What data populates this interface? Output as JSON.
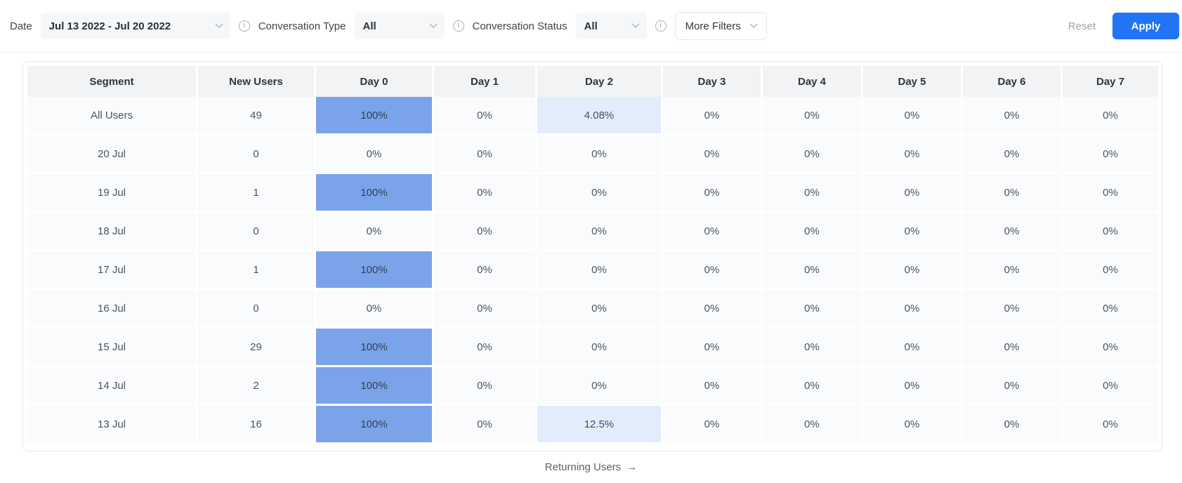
{
  "filter_bar": {
    "date_label": "Date",
    "date_value": "Jul 13 2022 - Jul 20 2022",
    "conversation_type_label": "Conversation Type",
    "conversation_type_value": "All",
    "conversation_status_label": "Conversation Status",
    "conversation_status_value": "All",
    "more_filters_label": "More Filters",
    "reset_label": "Reset",
    "apply_label": "Apply"
  },
  "colors": {
    "accent": "#2174f3",
    "retention_full": "#7aa3e9",
    "retention_partial": "#e3ecfa",
    "header_bg": "#f2f3f4",
    "cell_bg": "#fafbfc"
  },
  "table": {
    "columns": [
      "Segment",
      "New Users",
      "Day 0",
      "Day 1",
      "Day 2",
      "Day 3",
      "Day 4",
      "Day 5",
      "Day 6",
      "Day 7"
    ],
    "rows": [
      {
        "segment": "All Users",
        "new_users": "49",
        "days": [
          {
            "v": "100%",
            "hl": "strong"
          },
          {
            "v": "0%",
            "hl": "none"
          },
          {
            "v": "4.08%",
            "hl": "soft"
          },
          {
            "v": "0%",
            "hl": "none"
          },
          {
            "v": "0%",
            "hl": "none"
          },
          {
            "v": "0%",
            "hl": "none"
          },
          {
            "v": "0%",
            "hl": "none"
          },
          {
            "v": "0%",
            "hl": "none"
          }
        ]
      },
      {
        "segment": "20 Jul",
        "new_users": "0",
        "days": [
          {
            "v": "0%",
            "hl": "none"
          },
          {
            "v": "0%",
            "hl": "none"
          },
          {
            "v": "0%",
            "hl": "none"
          },
          {
            "v": "0%",
            "hl": "none"
          },
          {
            "v": "0%",
            "hl": "none"
          },
          {
            "v": "0%",
            "hl": "none"
          },
          {
            "v": "0%",
            "hl": "none"
          },
          {
            "v": "0%",
            "hl": "none"
          }
        ]
      },
      {
        "segment": "19 Jul",
        "new_users": "1",
        "days": [
          {
            "v": "100%",
            "hl": "strong"
          },
          {
            "v": "0%",
            "hl": "none"
          },
          {
            "v": "0%",
            "hl": "none"
          },
          {
            "v": "0%",
            "hl": "none"
          },
          {
            "v": "0%",
            "hl": "none"
          },
          {
            "v": "0%",
            "hl": "none"
          },
          {
            "v": "0%",
            "hl": "none"
          },
          {
            "v": "0%",
            "hl": "none"
          }
        ]
      },
      {
        "segment": "18 Jul",
        "new_users": "0",
        "days": [
          {
            "v": "0%",
            "hl": "none"
          },
          {
            "v": "0%",
            "hl": "none"
          },
          {
            "v": "0%",
            "hl": "none"
          },
          {
            "v": "0%",
            "hl": "none"
          },
          {
            "v": "0%",
            "hl": "none"
          },
          {
            "v": "0%",
            "hl": "none"
          },
          {
            "v": "0%",
            "hl": "none"
          },
          {
            "v": "0%",
            "hl": "none"
          }
        ]
      },
      {
        "segment": "17 Jul",
        "new_users": "1",
        "days": [
          {
            "v": "100%",
            "hl": "strong"
          },
          {
            "v": "0%",
            "hl": "none"
          },
          {
            "v": "0%",
            "hl": "none"
          },
          {
            "v": "0%",
            "hl": "none"
          },
          {
            "v": "0%",
            "hl": "none"
          },
          {
            "v": "0%",
            "hl": "none"
          },
          {
            "v": "0%",
            "hl": "none"
          },
          {
            "v": "0%",
            "hl": "none"
          }
        ]
      },
      {
        "segment": "16 Jul",
        "new_users": "0",
        "days": [
          {
            "v": "0%",
            "hl": "none"
          },
          {
            "v": "0%",
            "hl": "none"
          },
          {
            "v": "0%",
            "hl": "none"
          },
          {
            "v": "0%",
            "hl": "none"
          },
          {
            "v": "0%",
            "hl": "none"
          },
          {
            "v": "0%",
            "hl": "none"
          },
          {
            "v": "0%",
            "hl": "none"
          },
          {
            "v": "0%",
            "hl": "none"
          }
        ]
      },
      {
        "segment": "15 Jul",
        "new_users": "29",
        "days": [
          {
            "v": "100%",
            "hl": "strong"
          },
          {
            "v": "0%",
            "hl": "none"
          },
          {
            "v": "0%",
            "hl": "none"
          },
          {
            "v": "0%",
            "hl": "none"
          },
          {
            "v": "0%",
            "hl": "none"
          },
          {
            "v": "0%",
            "hl": "none"
          },
          {
            "v": "0%",
            "hl": "none"
          },
          {
            "v": "0%",
            "hl": "none"
          }
        ]
      },
      {
        "segment": "14 Jul",
        "new_users": "2",
        "days": [
          {
            "v": "100%",
            "hl": "strong"
          },
          {
            "v": "0%",
            "hl": "none"
          },
          {
            "v": "0%",
            "hl": "none"
          },
          {
            "v": "0%",
            "hl": "none"
          },
          {
            "v": "0%",
            "hl": "none"
          },
          {
            "v": "0%",
            "hl": "none"
          },
          {
            "v": "0%",
            "hl": "none"
          },
          {
            "v": "0%",
            "hl": "none"
          }
        ]
      },
      {
        "segment": "13 Jul",
        "new_users": "16",
        "days": [
          {
            "v": "100%",
            "hl": "strong"
          },
          {
            "v": "0%",
            "hl": "none"
          },
          {
            "v": "12.5%",
            "hl": "soft"
          },
          {
            "v": "0%",
            "hl": "none"
          },
          {
            "v": "0%",
            "hl": "none"
          },
          {
            "v": "0%",
            "hl": "none"
          },
          {
            "v": "0%",
            "hl": "none"
          },
          {
            "v": "0%",
            "hl": "none"
          }
        ]
      }
    ]
  },
  "footer": {
    "returning_users_label": "Returning Users",
    "arrow": "→"
  }
}
